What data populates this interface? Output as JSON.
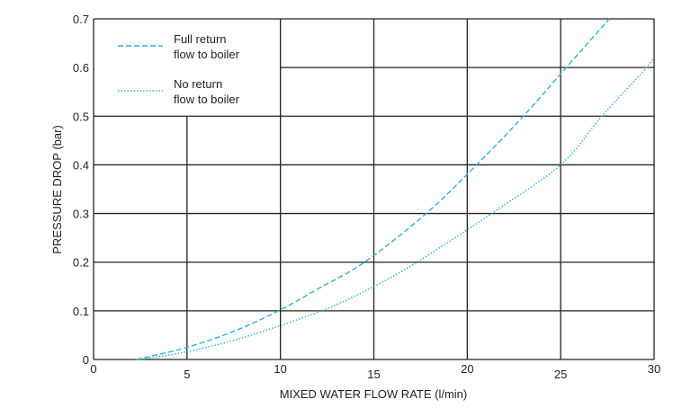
{
  "chart_data": {
    "type": "line",
    "title": "",
    "xlabel": "MIXED WATER FLOW RATE (l/min)",
    "ylabel": "PRESSURE DROP (bar)",
    "xlim": [
      0,
      30
    ],
    "ylim": [
      0,
      0.7
    ],
    "xticks": [
      "0",
      "5",
      "10",
      "15",
      "20",
      "25",
      "30"
    ],
    "yticks": [
      "0",
      "0.1",
      "0.2",
      "0.3",
      "0.4",
      "0.5",
      "0.6",
      "0.7"
    ],
    "grid": true,
    "legend_position": "top-left",
    "series": [
      {
        "name": "Full return flow to boiler",
        "legend_lines": [
          "Full return",
          "flow to boiler"
        ],
        "style": "dashed",
        "color": "#29b5d6",
        "x": [
          2.3,
          5,
          7.5,
          9.9,
          12,
          14.5,
          17.8,
          20.5,
          23.0,
          25.3,
          27.6
        ],
        "y": [
          0,
          0.025,
          0.058,
          0.1,
          0.145,
          0.2,
          0.3,
          0.4,
          0.5,
          0.6,
          0.7
        ]
      },
      {
        "name": "No return flow to boiler",
        "legend_lines": [
          "No return",
          "flow to boiler"
        ],
        "style": "dotted",
        "color": "#29b5d6",
        "x": [
          2.5,
          5,
          8,
          12.2,
          15,
          17.3,
          21.3,
          25.0,
          27.2,
          29.6,
          30
        ],
        "y": [
          0,
          0.016,
          0.045,
          0.1,
          0.15,
          0.2,
          0.3,
          0.4,
          0.5,
          0.6,
          0.625
        ]
      }
    ]
  }
}
